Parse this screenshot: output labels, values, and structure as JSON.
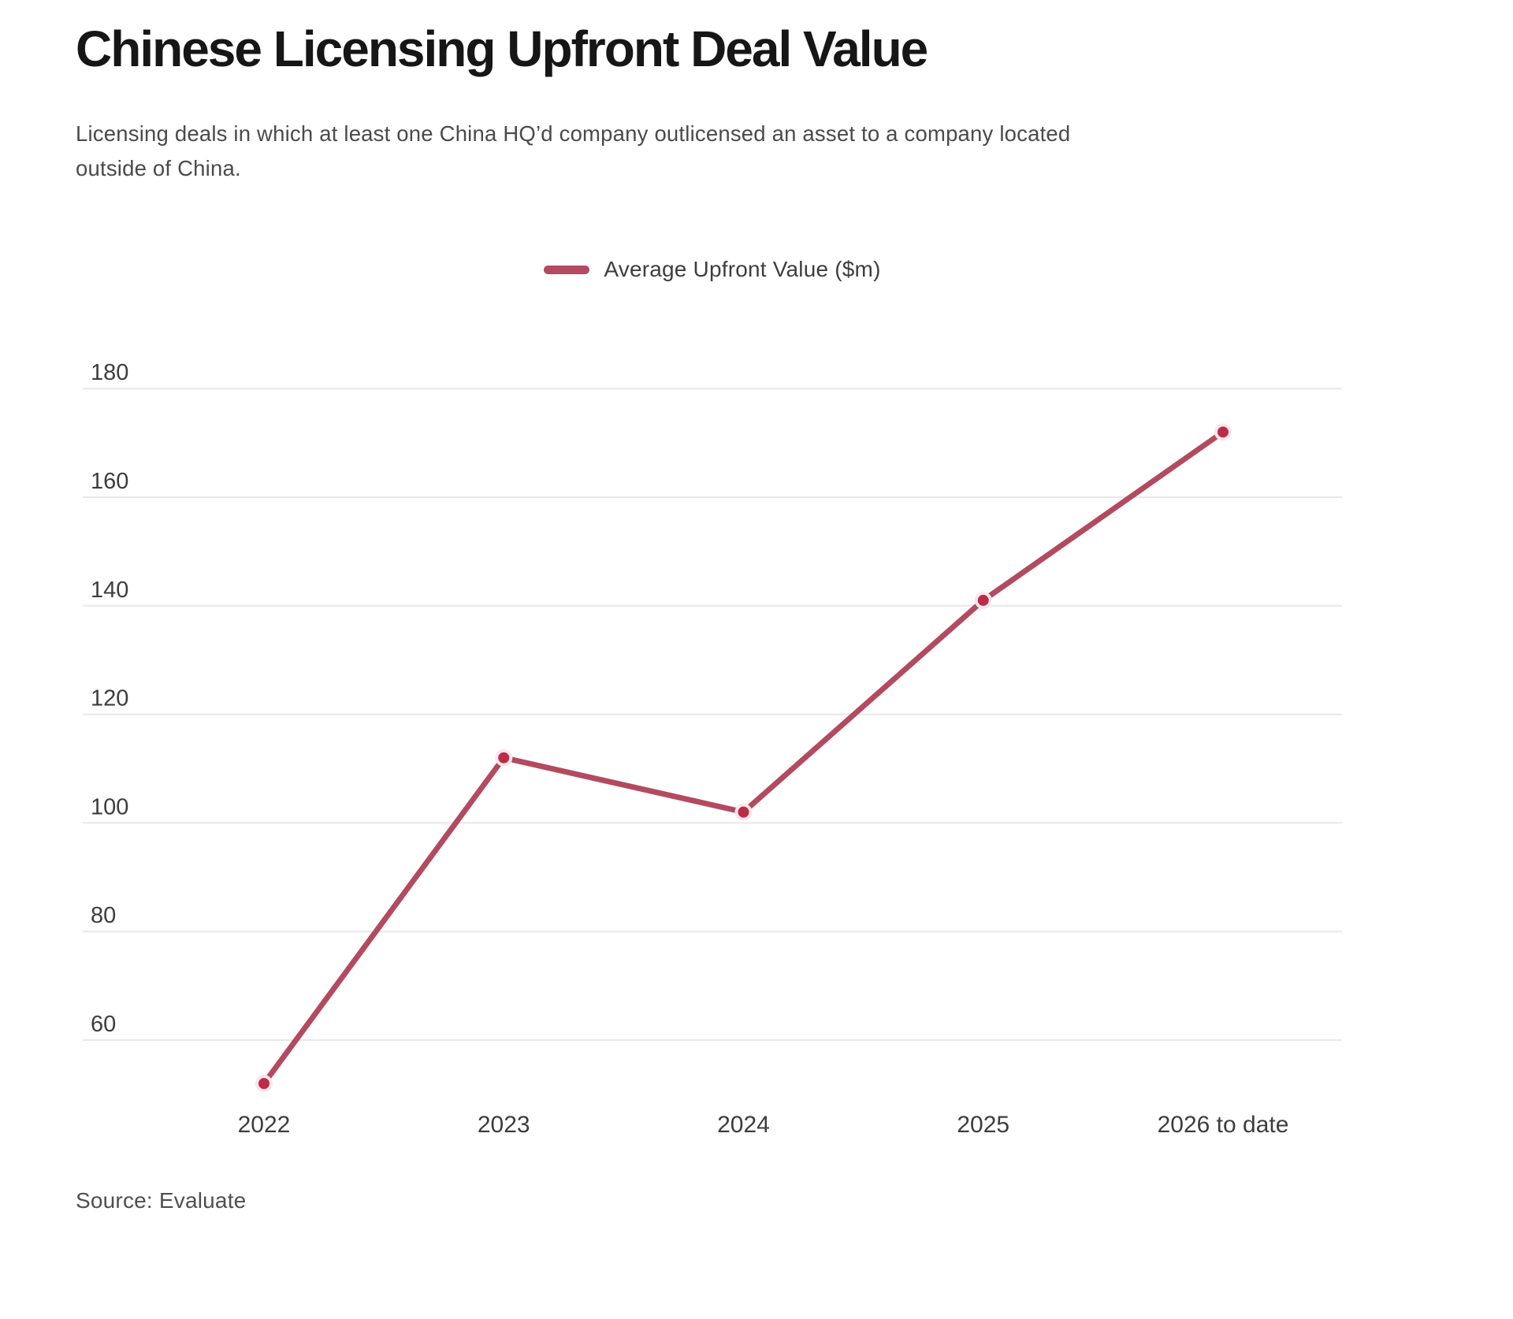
{
  "chart_data": {
    "type": "line",
    "title": "Chinese Licensing Upfront Deal Value",
    "subtitle": "Licensing deals in which at least one China HQ'd company outlicensed an asset to a company located outside of China.",
    "subtitle_lines": [
      "Licensing deals in which at least one China HQ’d company outlicensed an asset to a company located",
      "outside of China."
    ],
    "categories": [
      "2022",
      "2023",
      "2024",
      "2025",
      "2026 to date"
    ],
    "series": [
      {
        "name": "Average Upfront Value ($m)",
        "values": [
          52,
          112,
          102,
          141,
          172
        ],
        "color": "#b34a5f",
        "point_color": "#bc2c46"
      }
    ],
    "xlabel": "",
    "ylabel": "",
    "yticks": [
      60,
      80,
      100,
      120,
      140,
      160,
      180
    ],
    "ylim": [
      48,
      186
    ],
    "grid": true,
    "legend_position": "top-center",
    "source": "Source: Evaluate",
    "colors": {
      "grid": "#e8e8e8",
      "axis_text": "#3d3d3d",
      "title": "#161616",
      "subtitle": "#4a4a4a",
      "source": "#4f4f4f",
      "point_halo": "#f6e8ec"
    }
  }
}
